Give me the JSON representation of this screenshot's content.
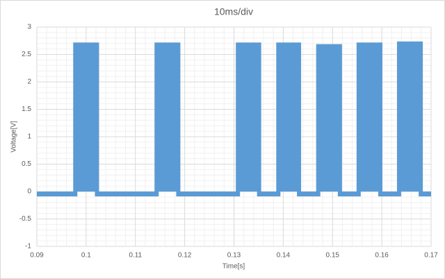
{
  "chart_data": {
    "type": "area",
    "title": "10ms/div",
    "x_label": "Time[s]",
    "y_label": "Voltage[V]",
    "x": [
      0.09,
      0.0978,
      0.0978,
      0.1022,
      0.1022,
      0.1143,
      0.1143,
      0.1187,
      0.1187,
      0.1308,
      0.1308,
      0.1351,
      0.1351,
      0.139,
      0.139,
      0.1432,
      0.1432,
      0.1471,
      0.1471,
      0.1515,
      0.1515,
      0.1553,
      0.1553,
      0.1597,
      0.1597,
      0.1635,
      0.1635,
      0.1679,
      0.1679,
      0.17
    ],
    "series": [
      {
        "name": "Voltage",
        "color": "#5b9bd5",
        "values": [
          -0.05,
          -0.05,
          2.68,
          2.68,
          -0.05,
          -0.05,
          2.68,
          2.68,
          -0.05,
          -0.05,
          2.68,
          2.68,
          -0.05,
          -0.05,
          2.68,
          2.68,
          -0.05,
          -0.05,
          2.65,
          2.65,
          -0.05,
          -0.05,
          2.68,
          2.68,
          -0.05,
          -0.05,
          2.7,
          2.7,
          -0.05,
          -0.05
        ]
      }
    ],
    "xlim": [
      0.09,
      0.17
    ],
    "xticks": [
      0.09,
      0.1,
      0.11,
      0.12,
      0.13,
      0.14,
      0.15,
      0.16,
      0.17
    ],
    "ylim": [
      -1,
      3
    ],
    "yticks": [
      -1,
      -0.5,
      0,
      0.5,
      1,
      1.5,
      2,
      2.5,
      3
    ],
    "grid": true
  }
}
